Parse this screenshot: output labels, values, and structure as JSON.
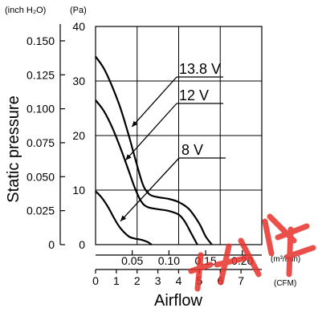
{
  "chart_data": {
    "type": "line",
    "xlabel": "Airflow",
    "ylabel": "Static pressure",
    "x_units": {
      "primary": "(CFM)",
      "secondary": "(m³/min)"
    },
    "y_units": {
      "primary": "(Pa)",
      "secondary": "(inch H₂O)"
    },
    "xlim": [
      0,
      8
    ],
    "ylim": [
      0,
      40
    ],
    "grid": true,
    "x_ticks": [
      "0",
      "1",
      "2",
      "3",
      "4",
      "5",
      "6",
      "7"
    ],
    "x_ticks_secondary": [
      "0.05",
      "0.10",
      "0.15",
      "0.20"
    ],
    "y_ticks": [
      "0",
      "10",
      "20",
      "30",
      "40"
    ],
    "y_ticks_secondary": [
      "0",
      "0.025",
      "0.050",
      "0.075",
      "0.100",
      "0.125",
      "0.150"
    ],
    "series": [
      {
        "name": "13.8 V",
        "x": [
          0,
          0.4,
          0.8,
          1.2,
          1.6,
          2.0,
          2.3,
          2.6,
          3.0,
          3.5,
          4.0,
          4.5,
          5.0,
          5.3,
          5.6
        ],
        "y": [
          34.5,
          32.3,
          29.0,
          25.0,
          20.0,
          14.5,
          10.8,
          9.2,
          8.7,
          8.4,
          7.8,
          6.5,
          3.8,
          1.5,
          0
        ]
      },
      {
        "name": "12 V",
        "x": [
          0,
          0.4,
          0.8,
          1.2,
          1.6,
          1.9,
          2.2,
          2.5,
          3.0,
          3.5,
          4.0,
          4.3,
          4.6,
          4.9
        ],
        "y": [
          26.5,
          24.5,
          21.5,
          17.7,
          13.5,
          10.3,
          7.9,
          6.9,
          6.5,
          6.2,
          5.5,
          4.2,
          2.1,
          0
        ]
      },
      {
        "name": "8 V",
        "x": [
          0,
          0.3,
          0.6,
          0.9,
          1.2,
          1.6,
          1.9,
          2.2,
          2.5,
          2.7
        ],
        "y": [
          9.8,
          8.6,
          6.9,
          4.8,
          3.0,
          1.5,
          1.1,
          0.9,
          0.5,
          0
        ]
      }
    ]
  }
}
